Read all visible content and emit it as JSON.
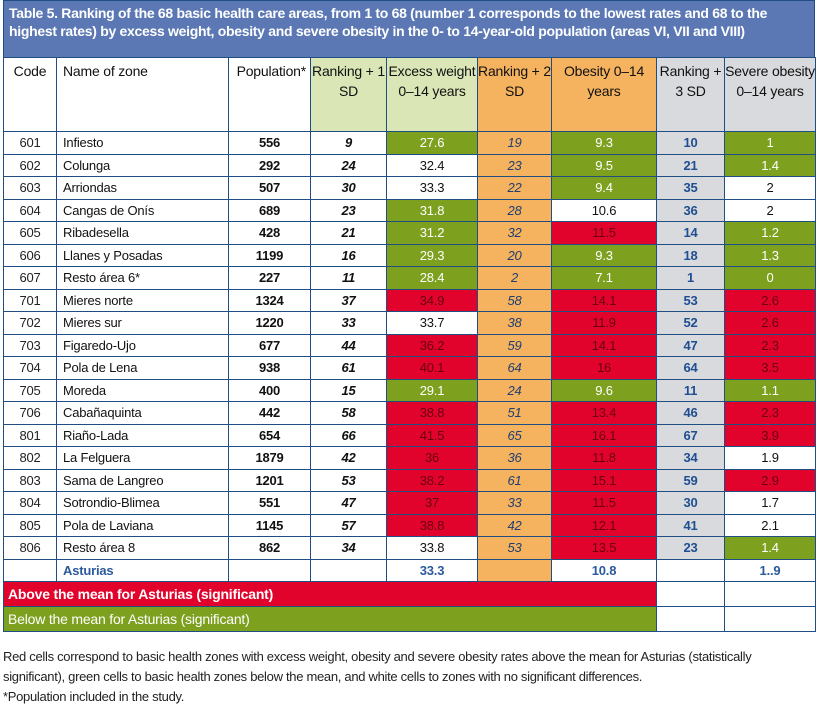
{
  "title": "Table 5. Ranking of the 68 basic health care areas, from 1 to 68 (number 1 corresponds to the lowest rates and 68 to the highest rates) by excess weight, obesity and severe obesity in the 0- to 14-year-old population (areas VI, VII and VIII)",
  "colors": {
    "title_bg": "#5b78b4",
    "above_mean_red": "#e2032d",
    "below_mean_green": "#7da11f",
    "rank1_header": "#dae6b6",
    "rank2_orange": "#f5b25f",
    "rank3_gray": "#d9dadd"
  },
  "headers": {
    "code": "Code",
    "name": "Name of zone",
    "population": "Population*",
    "rank1": "Ranking + 1 SD",
    "excess": "Excess weight 0–14 years",
    "rank2": "Ranking + 2 SD",
    "obesity": "Obesity 0–14 years",
    "rank3": "Ranking + 3 SD",
    "severe": "Severe obesity 0–14 years"
  },
  "rows": [
    {
      "code": "601",
      "name": "Infiesto",
      "population": "556",
      "rank1": "9",
      "excess": "27.6",
      "excess_sig": "green",
      "rank2": "19",
      "obesity": "9.3",
      "obesity_sig": "green",
      "rank3": "10",
      "severe": "1",
      "severe_sig": "green"
    },
    {
      "code": "602",
      "name": "Colunga",
      "population": "292",
      "rank1": "24",
      "excess": "32.4",
      "excess_sig": "white",
      "rank2": "23",
      "obesity": "9.5",
      "obesity_sig": "green",
      "rank3": "21",
      "severe": "1.4",
      "severe_sig": "green"
    },
    {
      "code": "603",
      "name": "Arriondas",
      "population": "507",
      "rank1": "30",
      "excess": "33.3",
      "excess_sig": "white",
      "rank2": "22",
      "obesity": "9.4",
      "obesity_sig": "green",
      "rank3": "35",
      "severe": "2",
      "severe_sig": "white"
    },
    {
      "code": "604",
      "name": "Cangas de Onís",
      "population": "689",
      "rank1": "23",
      "excess": "31.8",
      "excess_sig": "green",
      "rank2": "28",
      "obesity": "10.6",
      "obesity_sig": "white",
      "rank3": "36",
      "severe": "2",
      "severe_sig": "white"
    },
    {
      "code": "605",
      "name": "Ribadesella",
      "population": "428",
      "rank1": "21",
      "excess": "31.2",
      "excess_sig": "green",
      "rank2": "32",
      "obesity": "11.5",
      "obesity_sig": "red",
      "rank3": "14",
      "severe": "1.2",
      "severe_sig": "green"
    },
    {
      "code": "606",
      "name": "Llanes y Posadas",
      "population": "1199",
      "rank1": "16",
      "excess": "29.3",
      "excess_sig": "green",
      "rank2": "20",
      "obesity": "9.3",
      "obesity_sig": "green",
      "rank3": "18",
      "severe": "1.3",
      "severe_sig": "green"
    },
    {
      "code": "607",
      "name": "Resto área 6*",
      "population": "227",
      "rank1": "11",
      "excess": "28.4",
      "excess_sig": "green",
      "rank2": "2",
      "obesity": "7.1",
      "obesity_sig": "green",
      "rank3": "1",
      "severe": "0",
      "severe_sig": "green"
    },
    {
      "code": "701",
      "name": "Mieres norte",
      "population": "1324",
      "rank1": "37",
      "excess": "34.9",
      "excess_sig": "red",
      "rank2": "58",
      "obesity": "14.1",
      "obesity_sig": "red",
      "rank3": "53",
      "severe": "2.6",
      "severe_sig": "red"
    },
    {
      "code": "702",
      "name": "Mieres sur",
      "population": "1220",
      "rank1": "33",
      "excess": "33.7",
      "excess_sig": "white",
      "rank2": "38",
      "obesity": "11.9",
      "obesity_sig": "red",
      "rank3": "52",
      "severe": "2.6",
      "severe_sig": "red"
    },
    {
      "code": "703",
      "name": "Figaredo-Ujo",
      "population": "677",
      "rank1": "44",
      "excess": "36.2",
      "excess_sig": "red",
      "rank2": "59",
      "obesity": "14.1",
      "obesity_sig": "red",
      "rank3": "47",
      "severe": "2.3",
      "severe_sig": "red"
    },
    {
      "code": "704",
      "name": "Pola de Lena",
      "population": "938",
      "rank1": "61",
      "excess": "40.1",
      "excess_sig": "red",
      "rank2": "64",
      "obesity": "16",
      "obesity_sig": "red",
      "rank3": "64",
      "severe": "3.5",
      "severe_sig": "red"
    },
    {
      "code": "705",
      "name": "Moreda",
      "population": "400",
      "rank1": "15",
      "excess": "29.1",
      "excess_sig": "green",
      "rank2": "24",
      "obesity": "9.6",
      "obesity_sig": "green",
      "rank3": "11",
      "severe": "1.1",
      "severe_sig": "green"
    },
    {
      "code": "706",
      "name": "Cabañaquinta",
      "population": "442",
      "rank1": "58",
      "excess": "38.8",
      "excess_sig": "red",
      "rank2": "51",
      "obesity": "13.4",
      "obesity_sig": "red",
      "rank3": "46",
      "severe": "2.3",
      "severe_sig": "red"
    },
    {
      "code": "801",
      "name": "Riaño-Lada",
      "population": "654",
      "rank1": "66",
      "excess": "41.5",
      "excess_sig": "red",
      "rank2": "65",
      "obesity": "16.1",
      "obesity_sig": "red",
      "rank3": "67",
      "severe": "3.9",
      "severe_sig": "red"
    },
    {
      "code": "802",
      "name": "La Felguera",
      "population": "1879",
      "rank1": "42",
      "excess": "36",
      "excess_sig": "red",
      "rank2": "36",
      "obesity": "11.8",
      "obesity_sig": "red",
      "rank3": "34",
      "severe": "1.9",
      "severe_sig": "white"
    },
    {
      "code": "803",
      "name": "Sama de Langreo",
      "population": "1201",
      "rank1": "53",
      "excess": "38.2",
      "excess_sig": "red",
      "rank2": "61",
      "obesity": "15.1",
      "obesity_sig": "red",
      "rank3": "59",
      "severe": "2.9",
      "severe_sig": "red"
    },
    {
      "code": "804",
      "name": "Sotrondio-Blimea",
      "population": "551",
      "rank1": "47",
      "excess": "37",
      "excess_sig": "red",
      "rank2": "33",
      "obesity": "11.5",
      "obesity_sig": "red",
      "rank3": "30",
      "severe": "1.7",
      "severe_sig": "white"
    },
    {
      "code": "805",
      "name": "Pola de Laviana",
      "population": "1145",
      "rank1": "57",
      "excess": "38.8",
      "excess_sig": "red",
      "rank2": "42",
      "obesity": "12.1",
      "obesity_sig": "red",
      "rank3": "41",
      "severe": "2.1",
      "severe_sig": "white"
    },
    {
      "code": "806",
      "name": "Resto área 8",
      "population": "862",
      "rank1": "34",
      "excess": "33.8",
      "excess_sig": "white",
      "rank2": "53",
      "obesity": "13.5",
      "obesity_sig": "red",
      "rank3": "23",
      "severe": "1.4",
      "severe_sig": "green"
    }
  ],
  "asturias": {
    "name": "Asturias",
    "excess": "33.3",
    "obesity": "10.8",
    "severe": "1..9"
  },
  "legend": {
    "above": "Above the mean for Asturias (significant)",
    "below": "Below the mean for Asturias (significant)"
  },
  "notes": {
    "line1": "Red cells correspond to basic health zones with excess weight, obesity and severe obesity rates above the mean for Asturias (statistically significant), green cells to basic health zones below the mean, and white cells to zones with no significant differences.",
    "line2": "*Population included in the study."
  }
}
